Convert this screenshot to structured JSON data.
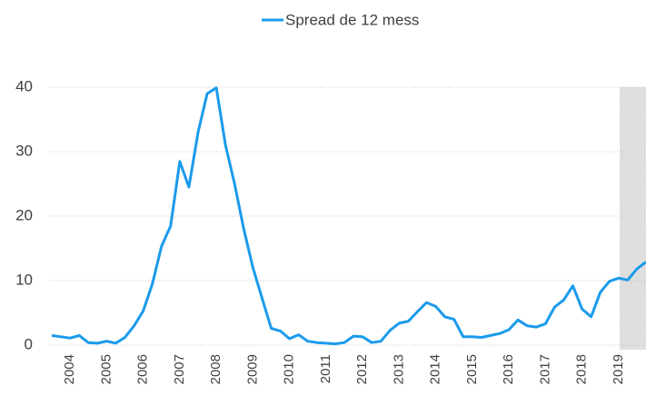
{
  "chart_data": {
    "type": "line",
    "categories": [
      null,
      null,
      "2004",
      null,
      null,
      null,
      "2005",
      null,
      null,
      null,
      "2006",
      null,
      null,
      null,
      "2007",
      null,
      null,
      null,
      "2008",
      null,
      null,
      null,
      "2009",
      null,
      null,
      null,
      "2010",
      null,
      null,
      null,
      "2011",
      null,
      null,
      null,
      "2012",
      null,
      null,
      null,
      "2013",
      null,
      null,
      null,
      "2014",
      null,
      null,
      null,
      "2015",
      null,
      null,
      null,
      "2016",
      null,
      null,
      null,
      "2017",
      null,
      null,
      null,
      "2018",
      null,
      null,
      null,
      "2019",
      null,
      null,
      null
    ],
    "series": [
      {
        "name": "Spread de 12 mess",
        "color": "#1a9bec",
        "values": [
          1.5,
          1.3,
          1.1,
          1.5,
          0.4,
          0.3,
          0.6,
          0.3,
          1.2,
          3.0,
          5.3,
          9.5,
          15.3,
          18.5,
          28.5,
          24.5,
          33,
          39,
          39.9,
          31,
          25,
          18,
          12,
          7.3,
          2.6,
          2.2,
          1.0,
          1.6,
          0.6,
          0.4,
          0.3,
          0.2,
          0.4,
          1.4,
          1.3,
          0.4,
          0.6,
          2.3,
          3.4,
          3.7,
          5.2,
          6.6,
          6.0,
          4.4,
          4.0,
          1.3,
          1.3,
          1.2,
          1.5,
          1.8,
          2.4,
          3.9,
          3.0,
          2.8,
          3.3,
          5.9,
          7.0,
          9.2,
          5.6,
          4.4,
          8.2,
          9.9,
          10.4,
          10.1,
          11.8,
          12.9
        ]
      }
    ],
    "ylim": [
      0,
      40
    ],
    "yticks": [
      0,
      10,
      20,
      30,
      40
    ],
    "grid": true,
    "legend": "top"
  }
}
